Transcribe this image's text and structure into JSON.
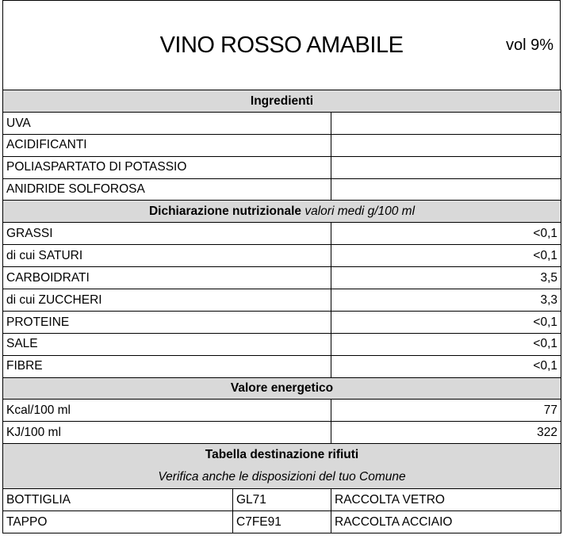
{
  "title": "VINO ROSSO AMABILE",
  "volume": "vol 9%",
  "ingredients": {
    "header": "Ingredienti",
    "items": [
      "UVA",
      "ACIDIFICANTI",
      "POLIASPARTATO DI POTASSIO",
      "ANIDRIDE SOLFOROSA"
    ]
  },
  "nutrition": {
    "header": "Dichiarazione nutrizionale",
    "header_note": "valori medi g/100 ml",
    "rows": [
      {
        "label": "GRASSI",
        "value": "<0,1"
      },
      {
        "label": "di cui SATURI",
        "value": "<0,1"
      },
      {
        "label": "CARBOIDRATI",
        "value": "3,5"
      },
      {
        "label": "di cui ZUCCHERI",
        "value": "3,3"
      },
      {
        "label": "PROTEINE",
        "value": "<0,1"
      },
      {
        "label": "SALE",
        "value": "<0,1"
      },
      {
        "label": "FIBRE",
        "value": "<0,1"
      }
    ]
  },
  "energy": {
    "header": "Valore energetico",
    "rows": [
      {
        "label": "Kcal/100 ml",
        "value": "77"
      },
      {
        "label": "KJ/100 ml",
        "value": "322"
      }
    ]
  },
  "waste": {
    "header": "Tabella destinazione rifiuti",
    "subheader": "Verifica anche le disposizioni del tuo Comune",
    "rows": [
      {
        "item": "BOTTIGLIA",
        "code": "GL71",
        "disposal": "RACCOLTA VETRO"
      },
      {
        "item": "TAPPO",
        "code": "C7FE91",
        "disposal": "RACCOLTA ACCIAIO"
      }
    ]
  },
  "colors": {
    "header_bg": "#d9d9d9",
    "border": "#000000"
  }
}
